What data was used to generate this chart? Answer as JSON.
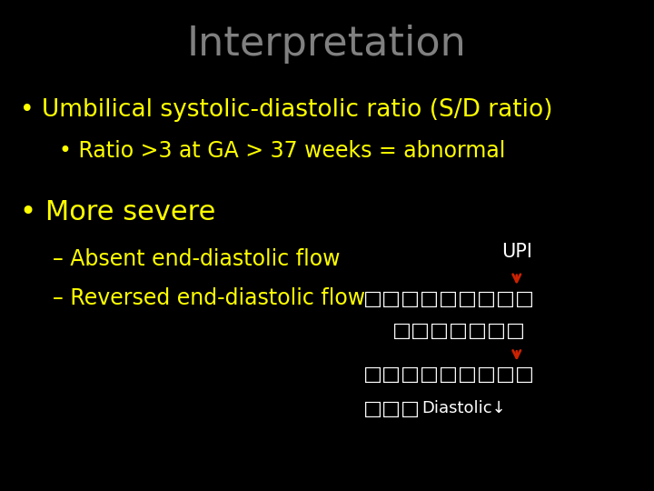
{
  "background_color": "#000000",
  "title": "Interpretation",
  "title_color": "#808080",
  "title_fontsize": 32,
  "bullet1_text": "• Umbilical systolic-diastolic ratio (S/D ratio)",
  "bullet1_color": "#ffff00",
  "bullet1_fontsize": 19,
  "bullet1_sub_text": "• Ratio >3 at GA > 37 weeks = abnormal",
  "bullet1_sub_color": "#ffff00",
  "bullet1_sub_fontsize": 17,
  "bullet2_text": "• More severe",
  "bullet2_color": "#ffff00",
  "bullet2_fontsize": 22,
  "dash1_text": "– Absent end-diastolic flow",
  "dash1_color": "#ffff00",
  "dash1_fontsize": 17,
  "dash2_text": "– Reversed end-diastolic flow",
  "dash2_color": "#ffff00",
  "dash2_fontsize": 17,
  "upi_text": "UPI",
  "upi_color": "#ffffff",
  "upi_fontsize": 15,
  "arrow_color": "#cc2200",
  "box_color": "#ffffff",
  "box_chars_row1": "□□□□□□□□□",
  "box_chars_row2": "□□□□□□□",
  "box_chars_row3": "□□□□□□□□□",
  "box_chars_row4_prefix": "□□□",
  "diastolic_text": "Diastolic↓",
  "diastolic_color": "#ffffff",
  "diastolic_fontsize": 13
}
